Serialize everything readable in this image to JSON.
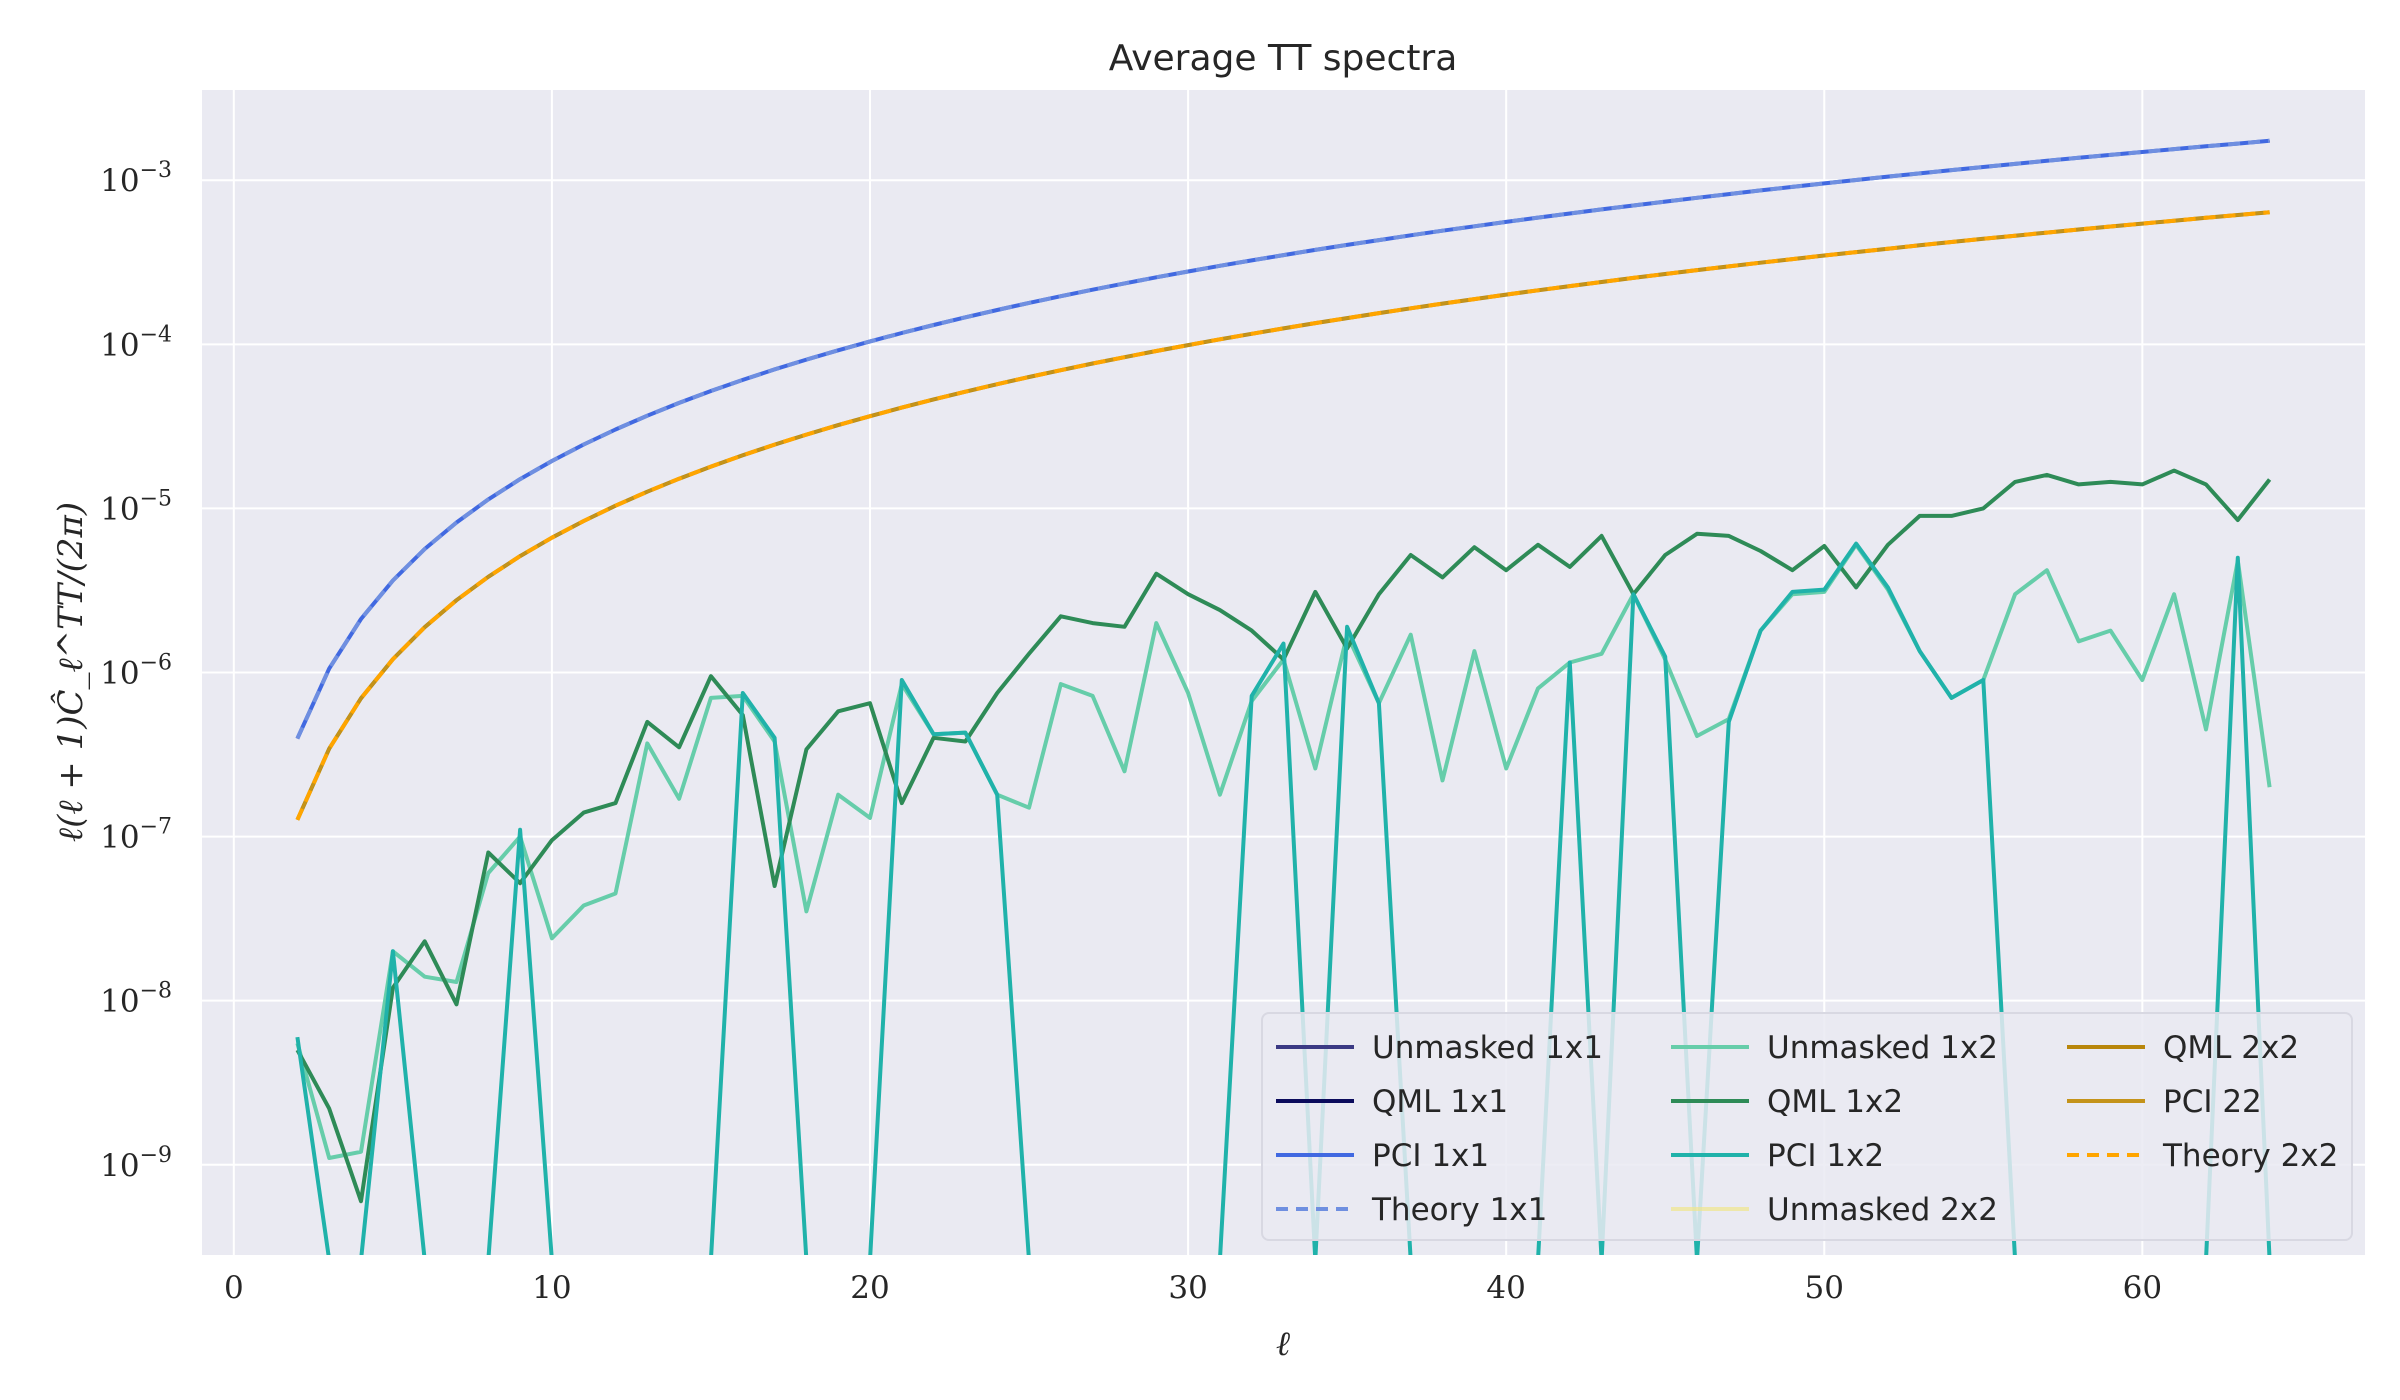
{
  "chart_data": {
    "type": "line",
    "title": "Average TT spectra",
    "xlabel": "ℓ",
    "ylabel": "ℓ(ℓ + 1)Ĉ_ℓ^TT/(2π)",
    "xlim": [
      -1,
      67
    ],
    "ylim_log10": [
      -9.55,
      -2.45
    ],
    "yscale": "log",
    "grid": true,
    "legend": {
      "placement": "lower-right",
      "columns": 3
    },
    "xticks": [
      {
        "value": 0,
        "label": "0"
      },
      {
        "value": 10,
        "label": "10"
      },
      {
        "value": 20,
        "label": "20"
      },
      {
        "value": 30,
        "label": "30"
      },
      {
        "value": 40,
        "label": "40"
      },
      {
        "value": 50,
        "label": "50"
      },
      {
        "value": 60,
        "label": "60"
      }
    ],
    "yticks": [
      {
        "exp": -9,
        "base": "10",
        "sup": "−9"
      },
      {
        "exp": -8,
        "base": "10",
        "sup": "−8"
      },
      {
        "exp": -7,
        "base": "10",
        "sup": "−7"
      },
      {
        "exp": -6,
        "base": "10",
        "sup": "−6"
      },
      {
        "exp": -5,
        "base": "10",
        "sup": "−5"
      },
      {
        "exp": -4,
        "base": "10",
        "sup": "−4"
      },
      {
        "exp": -3,
        "base": "10",
        "sup": "−3"
      }
    ],
    "ell": [
      2,
      3,
      4,
      5,
      6,
      7,
      8,
      9,
      10,
      11,
      12,
      13,
      14,
      15,
      16,
      17,
      18,
      19,
      20,
      21,
      22,
      23,
      24,
      25,
      26,
      27,
      28,
      29,
      30,
      31,
      32,
      33,
      34,
      35,
      36,
      37,
      38,
      39,
      40,
      41,
      42,
      43,
      44,
      45,
      46,
      47,
      48,
      49,
      50,
      51,
      52,
      53,
      54,
      55,
      56,
      57,
      58,
      59,
      60,
      61,
      62,
      63,
      64
    ],
    "series": [
      {
        "name": "Unmasked 1x1",
        "color": "#3b3a84",
        "dash": "",
        "width": 3,
        "opacity": 1.0,
        "func": "blue"
      },
      {
        "name": "QML 1x1",
        "color": "#0b0b5c",
        "dash": "",
        "width": 3,
        "opacity": 1.0,
        "func": "blue"
      },
      {
        "name": "PCI 1x1",
        "color": "#4169e1",
        "dash": "",
        "width": 4,
        "opacity": 1.0,
        "func": "blue"
      },
      {
        "name": "Theory 1x1",
        "color": "#6f8fe0",
        "dash": "12,8",
        "width": 4,
        "opacity": 1.0,
        "func": "blue"
      },
      {
        "name": "Unmasked 1x2",
        "color": "#66cdaa",
        "dash": "",
        "width": 4,
        "opacity": 1.0,
        "values": [
          5.5e-09,
          1.1e-09,
          1.2e-09,
          2e-08,
          1.4e-08,
          1.3e-08,
          6e-08,
          1e-07,
          2.4e-08,
          3.8e-08,
          4.5e-08,
          3.7e-07,
          1.7e-07,
          7e-07,
          7.2e-07,
          3.8e-07,
          3.5e-08,
          1.8e-07,
          1.3e-07,
          8.5e-07,
          4.2e-07,
          4.3e-07,
          1.8e-07,
          1.5e-07,
          8.5e-07,
          7.2e-07,
          2.5e-07,
          2e-06,
          7.5e-07,
          1.8e-07,
          6.7e-07,
          1.2e-06,
          2.6e-07,
          1.7e-06,
          6.5e-07,
          1.7e-06,
          2.2e-07,
          1.35e-06,
          2.6e-07,
          8e-07,
          1.15e-06,
          1.3e-06,
          3e-06,
          1.2e-06,
          4.1e-07,
          5.2e-07,
          1.8e-06,
          3e-06,
          3.1e-06,
          6e-06,
          3.2e-06,
          1.35e-06,
          7e-07,
          9e-07,
          3e-06,
          4.2e-06,
          1.55e-06,
          1.8e-06,
          9e-07,
          3e-06,
          4.5e-07,
          4.8e-06,
          2e-07
        ]
      },
      {
        "name": "QML 1x2",
        "color": "#2e8b57",
        "dash": "",
        "width": 4,
        "opacity": 1.0,
        "values": [
          5e-09,
          2.2e-09,
          6e-10,
          1.2e-08,
          2.3e-08,
          9.5e-09,
          8e-08,
          5.2e-08,
          9.5e-08,
          1.4e-07,
          1.6e-07,
          5e-07,
          3.5e-07,
          9.5e-07,
          5.5e-07,
          5e-08,
          3.4e-07,
          5.8e-07,
          6.5e-07,
          1.6e-07,
          4e-07,
          3.8e-07,
          7.5e-07,
          1.3e-06,
          2.2e-06,
          2e-06,
          1.9e-06,
          4e-06,
          3e-06,
          2.4e-06,
          1.8e-06,
          1.2e-06,
          3.1e-06,
          1.4e-06,
          3e-06,
          5.2e-06,
          3.8e-06,
          5.8e-06,
          4.2e-06,
          6e-06,
          4.4e-06,
          6.8e-06,
          3e-06,
          5.2e-06,
          7e-06,
          6.8e-06,
          5.5e-06,
          4.2e-06,
          5.9e-06,
          3.3e-06,
          6e-06,
          9e-06,
          9e-06,
          1e-05,
          1.45e-05,
          1.6e-05,
          1.4e-05,
          1.45e-05,
          1.4e-05,
          1.7e-05,
          1.4e-05,
          8.5e-06,
          1.5e-05
        ]
      },
      {
        "name": "PCI 1x2",
        "color": "#20b2aa",
        "dash": "",
        "width": 4,
        "opacity": 1.0,
        "values": [
          6e-09,
          null,
          null,
          2e-08,
          null,
          null,
          null,
          1.1e-07,
          null,
          null,
          null,
          null,
          null,
          null,
          7.5e-07,
          4e-07,
          null,
          null,
          null,
          9e-07,
          4.2e-07,
          4.3e-07,
          1.8e-07,
          null,
          null,
          null,
          null,
          null,
          null,
          null,
          7.2e-07,
          1.5e-06,
          null,
          1.9e-06,
          6.5e-07,
          null,
          null,
          null,
          null,
          null,
          1.15e-06,
          null,
          3e-06,
          1.25e-06,
          null,
          5e-07,
          1.8e-06,
          3.1e-06,
          3.2e-06,
          6.1e-06,
          3.3e-06,
          1.35e-06,
          7e-07,
          9e-07,
          null,
          null,
          null,
          null,
          null,
          null,
          null,
          5e-06,
          null
        ]
      },
      {
        "name": "Unmasked 2x2",
        "color": "#f0e68c",
        "dash": "",
        "width": 3,
        "opacity": 0.7,
        "func": "orange"
      },
      {
        "name": "QML 2x2",
        "color": "#b8860b",
        "dash": "",
        "width": 4,
        "opacity": 1.0,
        "func": "orange"
      },
      {
        "name": "PCI 22",
        "color": "#c4931a",
        "dash": "",
        "width": 3,
        "opacity": 1.0,
        "func": "orange"
      },
      {
        "name": "Theory 2x2",
        "color": "#ffa500",
        "dash": "12,8",
        "width": 4,
        "opacity": 1.0,
        "func": "orange"
      }
    ]
  }
}
